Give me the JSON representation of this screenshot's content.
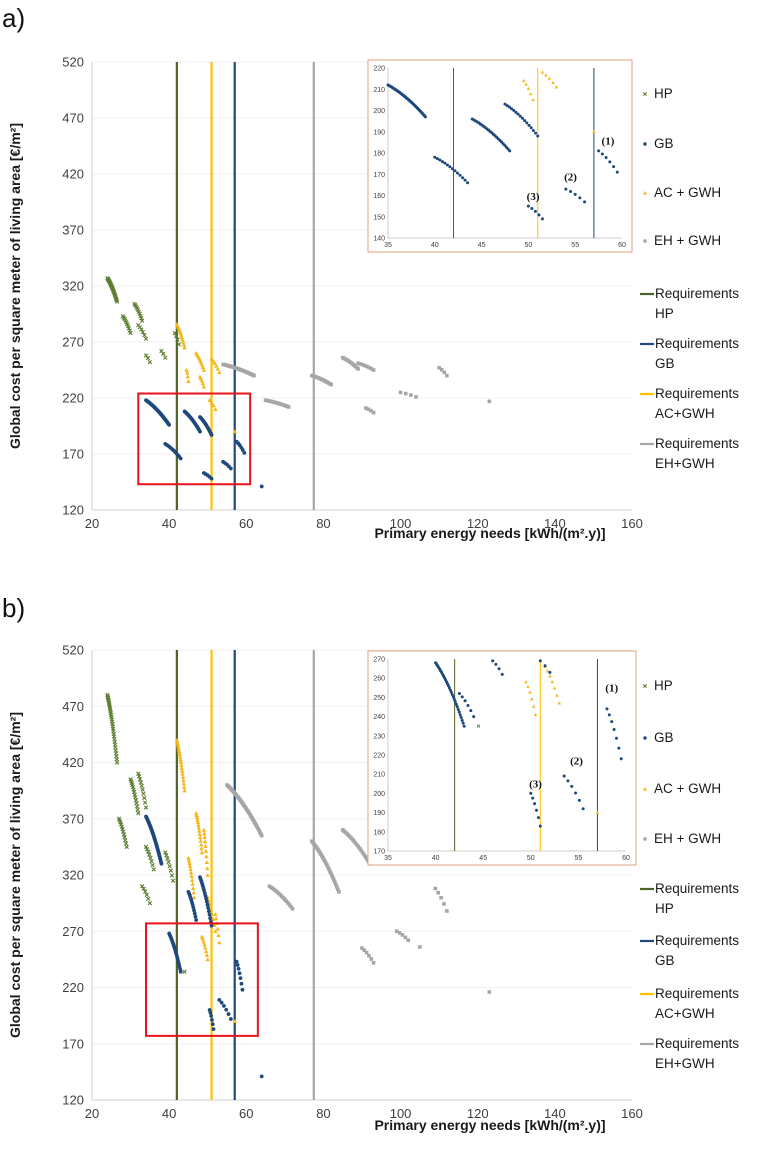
{
  "colors": {
    "HP": "#5a7d2e",
    "GB": "#1f497d",
    "ACGWH": "#f6b61a",
    "EHGWH": "#a6a6a6",
    "reqHP": "#4f6228",
    "reqGB": "#1f497d",
    "reqAC": "#ffc000",
    "reqEH": "#a6a6a6",
    "highlight": "#e8141b",
    "insetBorder": "#e0a080"
  },
  "legend": {
    "items": [
      {
        "key": "HP",
        "lines": [
          "HP"
        ],
        "marker": "x"
      },
      {
        "key": "GB",
        "lines": [
          "GB"
        ],
        "marker": "dot"
      },
      {
        "key": "ACGWH",
        "lines": [
          "AC + GWH"
        ],
        "marker": "tri"
      },
      {
        "key": "EHGWH",
        "lines": [
          "EH + GWH"
        ],
        "marker": "sq"
      },
      {
        "key": "reqHP",
        "lines": [
          "Requirements",
          "HP"
        ],
        "marker": "line"
      },
      {
        "key": "reqGB",
        "lines": [
          "Requirements",
          "GB"
        ],
        "marker": "line"
      },
      {
        "key": "reqAC",
        "lines": [
          "Requirements",
          "AC+GWH"
        ],
        "marker": "line"
      },
      {
        "key": "reqEH",
        "lines": [
          "Requirements",
          "EH+GWH"
        ],
        "marker": "line"
      }
    ]
  },
  "chart_data": [
    {
      "panel_label": "a)",
      "type": "scatter",
      "xlabel": "Primary energy needs [kWh/(m².y)]",
      "ylabel": "Global cost per square meter of living area [€/m²]",
      "xlim": [
        20,
        160
      ],
      "ylim": [
        120,
        520
      ],
      "xticks": [
        20,
        40,
        60,
        80,
        100,
        120,
        140,
        160
      ],
      "yticks": [
        120,
        170,
        220,
        270,
        320,
        370,
        420,
        470,
        520
      ],
      "requirements": [
        {
          "key": "reqHP",
          "x": 42
        },
        {
          "key": "reqAC",
          "x": 51
        },
        {
          "key": "reqGB",
          "x": 57
        },
        {
          "key": "reqEH",
          "x": 77.5
        }
      ],
      "clusters": [
        {
          "series": "HP",
          "x0": 24,
          "y0": 327,
          "x1": 26.5,
          "y1": 306,
          "n": 22
        },
        {
          "series": "HP",
          "x0": 28,
          "y0": 293,
          "x1": 30,
          "y1": 278,
          "n": 10
        },
        {
          "series": "HP",
          "x0": 31,
          "y0": 304,
          "x1": 33,
          "y1": 289,
          "n": 10
        },
        {
          "series": "HP",
          "x0": 32,
          "y0": 285,
          "x1": 34,
          "y1": 273,
          "n": 6
        },
        {
          "series": "HP",
          "x0": 34,
          "y0": 258,
          "x1": 35,
          "y1": 252,
          "n": 3
        },
        {
          "series": "HP",
          "x0": 38,
          "y0": 262,
          "x1": 39,
          "y1": 256,
          "n": 3
        },
        {
          "series": "HP",
          "x0": 41.5,
          "y0": 278,
          "x1": 42.5,
          "y1": 268,
          "n": 4
        },
        {
          "series": "ACGWH",
          "x0": 42,
          "y0": 286,
          "x1": 44,
          "y1": 265,
          "n": 12
        },
        {
          "series": "ACGWH",
          "x0": 44.5,
          "y0": 245,
          "x1": 45,
          "y1": 235,
          "n": 4
        },
        {
          "series": "ACGWH",
          "x0": 47,
          "y0": 260,
          "x1": 49,
          "y1": 245,
          "n": 9
        },
        {
          "series": "ACGWH",
          "x0": 48,
          "y0": 239,
          "x1": 49,
          "y1": 230,
          "n": 5
        },
        {
          "series": "ACGWH",
          "x0": 51,
          "y0": 255,
          "x1": 53,
          "y1": 243,
          "n": 6
        },
        {
          "series": "ACGWH",
          "x0": 50.5,
          "y0": 218,
          "x1": 52,
          "y1": 210,
          "n": 4
        },
        {
          "series": "ACGWH",
          "x0": 57,
          "y0": 190,
          "x1": 57,
          "y1": 190,
          "n": 1
        },
        {
          "series": "GB",
          "x0": 34,
          "y0": 218,
          "x1": 40,
          "y1": 196,
          "n": 40
        },
        {
          "series": "GB",
          "x0": 39,
          "y0": 179,
          "x1": 43,
          "y1": 166,
          "n": 12
        },
        {
          "series": "GB",
          "x0": 44,
          "y0": 208,
          "x1": 48,
          "y1": 190,
          "n": 20
        },
        {
          "series": "GB",
          "x0": 49,
          "y0": 153,
          "x1": 51,
          "y1": 148,
          "n": 5
        },
        {
          "series": "GB",
          "x0": 48,
          "y0": 203,
          "x1": 51,
          "y1": 187,
          "n": 15
        },
        {
          "series": "GB",
          "x0": 54,
          "y0": 163,
          "x1": 56,
          "y1": 157,
          "n": 5
        },
        {
          "series": "GB",
          "x0": 57.5,
          "y0": 181,
          "x1": 59.5,
          "y1": 171,
          "n": 6
        },
        {
          "series": "GB",
          "x0": 64,
          "y0": 141,
          "x1": 64,
          "y1": 141,
          "n": 1
        },
        {
          "series": "EHGWH",
          "x0": 54,
          "y0": 250,
          "x1": 62,
          "y1": 240,
          "n": 30
        },
        {
          "series": "EHGWH",
          "x0": 65,
          "y0": 218,
          "x1": 71,
          "y1": 212,
          "n": 18
        },
        {
          "series": "EHGWH",
          "x0": 77,
          "y0": 240,
          "x1": 82,
          "y1": 232,
          "n": 16
        },
        {
          "series": "EHGWH",
          "x0": 85,
          "y0": 256,
          "x1": 89,
          "y1": 246,
          "n": 12
        },
        {
          "series": "EHGWH",
          "x0": 89,
          "y0": 251,
          "x1": 93,
          "y1": 245,
          "n": 8
        },
        {
          "series": "EHGWH",
          "x0": 91,
          "y0": 211,
          "x1": 93,
          "y1": 207,
          "n": 4
        },
        {
          "series": "EHGWH",
          "x0": 100,
          "y0": 225,
          "x1": 104,
          "y1": 221,
          "n": 4
        },
        {
          "series": "EHGWH",
          "x0": 110,
          "y0": 247,
          "x1": 112,
          "y1": 240,
          "n": 4
        },
        {
          "series": "EHGWH",
          "x0": 123,
          "y0": 217,
          "x1": 123,
          "y1": 217,
          "n": 1
        }
      ],
      "highlight_box": {
        "x": [
          32,
          61
        ],
        "y": [
          143,
          224
        ]
      },
      "inset": {
        "xlim": [
          35,
          60
        ],
        "ylim": [
          140,
          220
        ],
        "xticks": [
          35,
          40,
          45,
          50,
          55,
          60
        ],
        "yticks": [
          140,
          150,
          160,
          170,
          180,
          190,
          200,
          210,
          220
        ],
        "requirements": [
          {
            "key": "reqHP",
            "x": 42
          },
          {
            "key": "reqAC",
            "x": 51
          },
          {
            "key": "reqGB",
            "x": 57
          }
        ],
        "clusters": [
          {
            "series": "GB",
            "x0": 35,
            "y0": 212,
            "x1": 39,
            "y1": 197,
            "n": 45
          },
          {
            "series": "GB",
            "x0": 40,
            "y0": 178,
            "x1": 43.5,
            "y1": 166,
            "n": 14
          },
          {
            "series": "GB",
            "x0": 44,
            "y0": 196,
            "x1": 48,
            "y1": 181,
            "n": 24
          },
          {
            "series": "GB",
            "x0": 47.5,
            "y0": 203,
            "x1": 51,
            "y1": 188,
            "n": 16
          },
          {
            "series": "GB",
            "x0": 50,
            "y0": 155,
            "x1": 51.5,
            "y1": 149,
            "n": 5
          },
          {
            "series": "GB",
            "x0": 54,
            "y0": 163,
            "x1": 56,
            "y1": 157,
            "n": 5
          },
          {
            "series": "GB",
            "x0": 57.5,
            "y0": 181,
            "x1": 59.5,
            "y1": 171,
            "n": 6
          },
          {
            "series": "ACGWH",
            "x0": 49.5,
            "y0": 214,
            "x1": 50.5,
            "y1": 205,
            "n": 5
          },
          {
            "series": "ACGWH",
            "x0": 51.5,
            "y0": 218,
            "x1": 53,
            "y1": 211,
            "n": 5
          },
          {
            "series": "ACGWH",
            "x0": 57,
            "y0": 190,
            "x1": 57,
            "y1": 190,
            "n": 1
          }
        ],
        "annotations": [
          {
            "text": "(1)",
            "x": 58.5,
            "y": 184
          },
          {
            "text": "(2)",
            "x": 54.5,
            "y": 167
          },
          {
            "text": "(3)",
            "x": 50.5,
            "y": 158
          }
        ]
      }
    },
    {
      "panel_label": "b)",
      "type": "scatter",
      "xlabel": "Primary energy needs [kWh/(m².y)]",
      "ylabel": "Global cost per square meter of living area [€/m²]",
      "xlim": [
        20,
        160
      ],
      "ylim": [
        120,
        520
      ],
      "xticks": [
        20,
        40,
        60,
        80,
        100,
        120,
        140,
        160
      ],
      "yticks": [
        120,
        170,
        220,
        270,
        320,
        370,
        420,
        470,
        520
      ],
      "requirements": [
        {
          "key": "reqHP",
          "x": 42
        },
        {
          "key": "reqAC",
          "x": 51
        },
        {
          "key": "reqGB",
          "x": 57
        },
        {
          "key": "reqEH",
          "x": 77.5
        }
      ],
      "clusters": [
        {
          "series": "HP",
          "x0": 24,
          "y0": 480,
          "x1": 26.5,
          "y1": 420,
          "n": 30
        },
        {
          "series": "HP",
          "x0": 27,
          "y0": 370,
          "x1": 29,
          "y1": 345,
          "n": 12
        },
        {
          "series": "HP",
          "x0": 30,
          "y0": 405,
          "x1": 32,
          "y1": 375,
          "n": 14
        },
        {
          "series": "HP",
          "x0": 32,
          "y0": 410,
          "x1": 34,
          "y1": 380,
          "n": 10
        },
        {
          "series": "HP",
          "x0": 33,
          "y0": 310,
          "x1": 35,
          "y1": 295,
          "n": 6
        },
        {
          "series": "HP",
          "x0": 34,
          "y0": 345,
          "x1": 36,
          "y1": 325,
          "n": 8
        },
        {
          "series": "HP",
          "x0": 39,
          "y0": 340,
          "x1": 41,
          "y1": 315,
          "n": 8
        },
        {
          "series": "HP",
          "x0": 44,
          "y0": 234,
          "x1": 44,
          "y1": 234,
          "n": 1
        },
        {
          "series": "ACGWH",
          "x0": 42,
          "y0": 440,
          "x1": 44,
          "y1": 395,
          "n": 20
        },
        {
          "series": "ACGWH",
          "x0": 45,
          "y0": 335,
          "x1": 46.5,
          "y1": 300,
          "n": 12
        },
        {
          "series": "ACGWH",
          "x0": 47,
          "y0": 375,
          "x1": 48.5,
          "y1": 340,
          "n": 14
        },
        {
          "series": "ACGWH",
          "x0": 49,
          "y0": 360,
          "x1": 50,
          "y1": 320,
          "n": 10
        },
        {
          "series": "ACGWH",
          "x0": 48.5,
          "y0": 265,
          "x1": 50,
          "y1": 245,
          "n": 8
        },
        {
          "series": "ACGWH",
          "x0": 50,
          "y0": 300,
          "x1": 52,
          "y1": 270,
          "n": 8
        },
        {
          "series": "ACGWH",
          "x0": 52,
          "y0": 285,
          "x1": 53,
          "y1": 260,
          "n": 6
        },
        {
          "series": "ACGWH",
          "x0": 57,
          "y0": 190,
          "x1": 57,
          "y1": 190,
          "n": 1
        },
        {
          "series": "GB",
          "x0": 34,
          "y0": 372,
          "x1": 38,
          "y1": 330,
          "n": 40
        },
        {
          "series": "GB",
          "x0": 40,
          "y0": 268,
          "x1": 43,
          "y1": 234,
          "n": 20
        },
        {
          "series": "GB",
          "x0": 45,
          "y0": 305,
          "x1": 47,
          "y1": 280,
          "n": 12
        },
        {
          "series": "GB",
          "x0": 48,
          "y0": 318,
          "x1": 51,
          "y1": 275,
          "n": 18
        },
        {
          "series": "GB",
          "x0": 50.5,
          "y0": 200,
          "x1": 51.5,
          "y1": 183,
          "n": 6
        },
        {
          "series": "GB",
          "x0": 53,
          "y0": 209,
          "x1": 56,
          "y1": 192,
          "n": 6
        },
        {
          "series": "GB",
          "x0": 57.5,
          "y0": 243,
          "x1": 59,
          "y1": 218,
          "n": 7
        },
        {
          "series": "GB",
          "x0": 64,
          "y0": 141,
          "x1": 64,
          "y1": 141,
          "n": 1
        },
        {
          "series": "EHGWH",
          "x0": 55,
          "y0": 400,
          "x1": 64,
          "y1": 355,
          "n": 40
        },
        {
          "series": "EHGWH",
          "x0": 66,
          "y0": 310,
          "x1": 72,
          "y1": 290,
          "n": 16
        },
        {
          "series": "EHGWH",
          "x0": 77,
          "y0": 350,
          "x1": 84,
          "y1": 305,
          "n": 28
        },
        {
          "series": "EHGWH",
          "x0": 85,
          "y0": 360,
          "x1": 92,
          "y1": 330,
          "n": 20
        },
        {
          "series": "EHGWH",
          "x0": 90,
          "y0": 255,
          "x1": 93,
          "y1": 242,
          "n": 6
        },
        {
          "series": "EHGWH",
          "x0": 99,
          "y0": 270,
          "x1": 102,
          "y1": 262,
          "n": 5
        },
        {
          "series": "EHGWH",
          "x0": 105,
          "y0": 256,
          "x1": 105,
          "y1": 256,
          "n": 1
        },
        {
          "series": "EHGWH",
          "x0": 109,
          "y0": 308,
          "x1": 112,
          "y1": 288,
          "n": 5
        },
        {
          "series": "EHGWH",
          "x0": 123,
          "y0": 216,
          "x1": 123,
          "y1": 216,
          "n": 1
        }
      ],
      "highlight_box": {
        "x": [
          34,
          63
        ],
        "y": [
          177,
          277
        ]
      },
      "inset": {
        "xlim": [
          35,
          60
        ],
        "ylim": [
          170,
          270
        ],
        "xticks": [
          35,
          40,
          45,
          50,
          55,
          60
        ],
        "yticks": [
          170,
          180,
          190,
          200,
          210,
          220,
          230,
          240,
          250,
          260,
          270
        ],
        "requirements": [
          {
            "key": "reqHP",
            "x": 42
          },
          {
            "key": "reqAC",
            "x": 51
          },
          {
            "key": "reqGB",
            "x": 57
          }
        ],
        "clusters": [
          {
            "series": "GB",
            "x0": 40,
            "y0": 268,
            "x1": 43,
            "y1": 235,
            "n": 30
          },
          {
            "series": "GB",
            "x0": 42.5,
            "y0": 252,
            "x1": 44,
            "y1": 240,
            "n": 6
          },
          {
            "series": "GB",
            "x0": 46,
            "y0": 269,
            "x1": 47,
            "y1": 262,
            "n": 4
          },
          {
            "series": "GB",
            "x0": 51,
            "y0": 269,
            "x1": 52,
            "y1": 263,
            "n": 3
          },
          {
            "series": "GB",
            "x0": 50,
            "y0": 200,
            "x1": 51,
            "y1": 183,
            "n": 6
          },
          {
            "series": "GB",
            "x0": 53.5,
            "y0": 209,
            "x1": 55.5,
            "y1": 192,
            "n": 6
          },
          {
            "series": "GB",
            "x0": 58,
            "y0": 244,
            "x1": 59.5,
            "y1": 218,
            "n": 7
          },
          {
            "series": "HP",
            "x0": 44.5,
            "y0": 235,
            "x1": 44.5,
            "y1": 235,
            "n": 1
          },
          {
            "series": "ACGWH",
            "x0": 49.5,
            "y0": 258,
            "x1": 50.5,
            "y1": 241,
            "n": 6
          },
          {
            "series": "ACGWH",
            "x0": 51.5,
            "y0": 266,
            "x1": 53,
            "y1": 247,
            "n": 7
          },
          {
            "series": "ACGWH",
            "x0": 57,
            "y0": 190,
            "x1": 57,
            "y1": 190,
            "n": 1
          }
        ],
        "annotations": [
          {
            "text": "(1)",
            "x": 58.5,
            "y": 253
          },
          {
            "text": "(2)",
            "x": 54.8,
            "y": 215
          },
          {
            "text": "(3)",
            "x": 50.5,
            "y": 203
          }
        ]
      }
    }
  ]
}
